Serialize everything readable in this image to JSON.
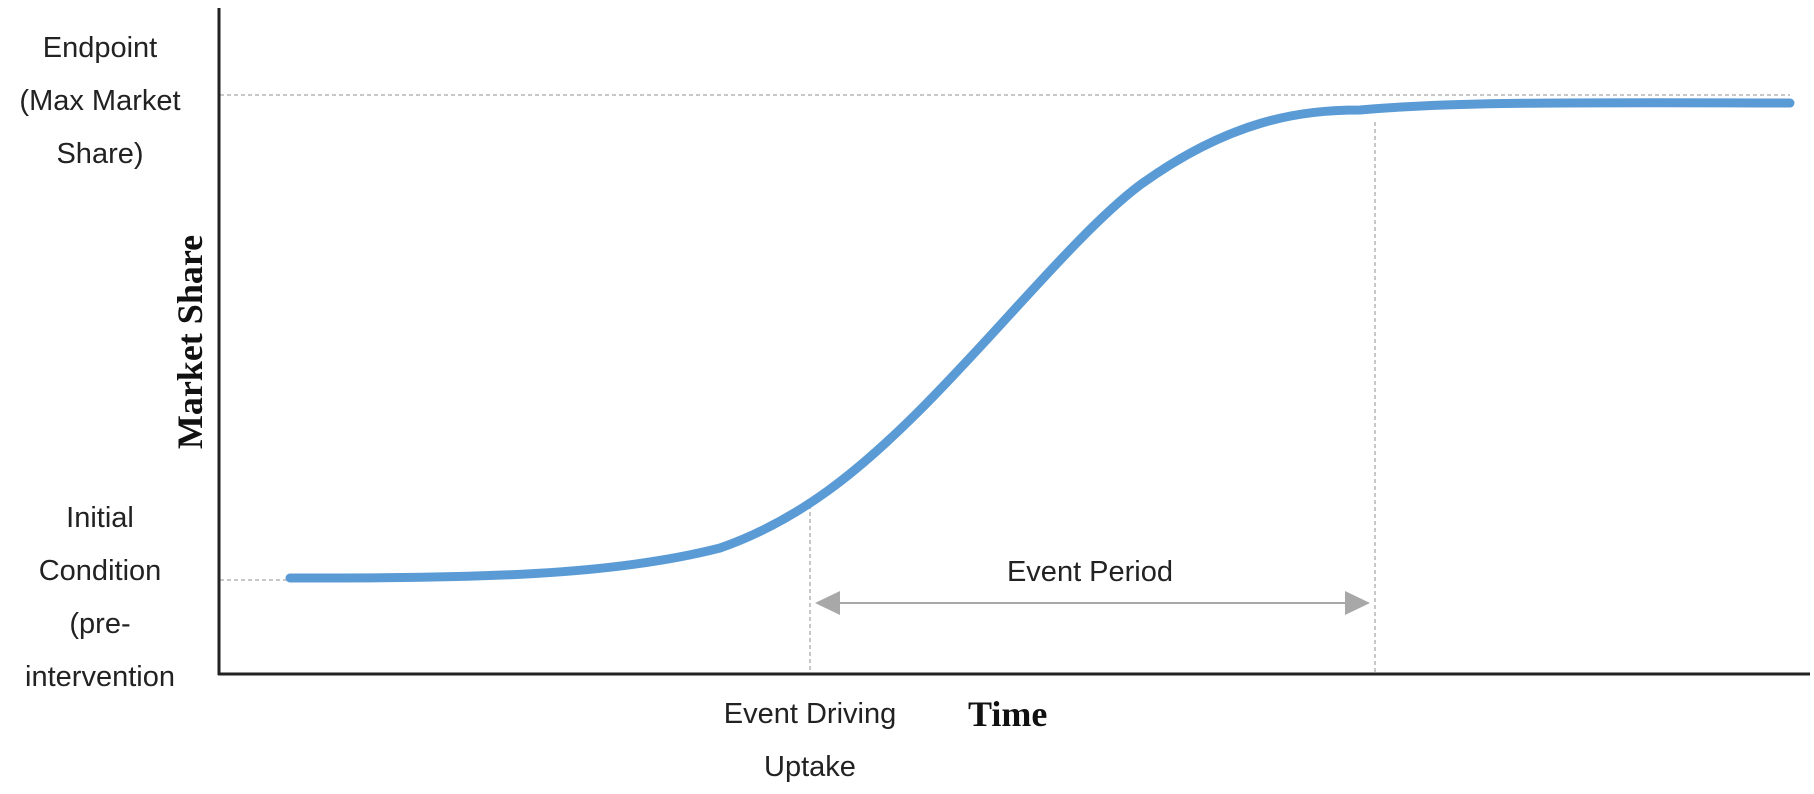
{
  "diagram": {
    "y_axis_title": "Market Share",
    "x_axis_title": "Time",
    "endpoint_label": [
      "Endpoint",
      "(Max Market",
      "Share)"
    ],
    "initial_label": [
      "Initial",
      "Condition",
      "(pre-",
      "intervention"
    ],
    "event_driving_label": [
      "Event Driving",
      "Uptake"
    ],
    "event_period_label": "Event Period",
    "colors": {
      "curve": "#5b9bd5",
      "axis": "#222222",
      "guide": "#b5b5b5",
      "arrow": "#a8a8a8"
    }
  }
}
